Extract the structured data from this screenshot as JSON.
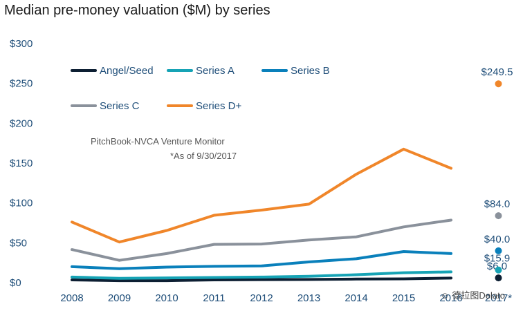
{
  "chart_data": {
    "type": "line",
    "title": "Median pre-money valuation ($M) by series",
    "categories": [
      "2008",
      "2009",
      "2010",
      "2011",
      "2012",
      "2013",
      "2014",
      "2015",
      "2016"
    ],
    "x_extra_label": "2017*",
    "yticks": [
      "$0",
      "$50",
      "$100",
      "$150",
      "$200",
      "$250",
      "$300"
    ],
    "ylim": [
      0,
      300
    ],
    "grid": false,
    "legend_position": "top-left",
    "series": [
      {
        "name": "Angel/Seed",
        "color": "#0d1f33",
        "values": [
          3.5,
          2.5,
          2.5,
          3.5,
          3.8,
          4.0,
          4.5,
          4.8,
          5.7
        ],
        "point_2017": 6.0,
        "point_label": "$6.0"
      },
      {
        "name": "Series A",
        "color": "#16a3b5",
        "values": [
          7.0,
          5.5,
          6.0,
          6.5,
          7.0,
          8.0,
          10.0,
          12.5,
          13.5
        ],
        "point_2017": 15.9,
        "point_label": "$15.9"
      },
      {
        "name": "Series B",
        "color": "#0a80bb",
        "values": [
          20.0,
          17.5,
          19.5,
          20.5,
          21.0,
          26.0,
          30.0,
          39.0,
          36.5
        ],
        "point_2017": 40.0,
        "point_label": "$40.0"
      },
      {
        "name": "Series C",
        "color": "#8a919b",
        "values": [
          41.5,
          28.0,
          36.5,
          48.0,
          48.5,
          53.5,
          57.5,
          70.0,
          78.5
        ],
        "point_2017": 84.0,
        "point_label": "$84.0"
      },
      {
        "name": "Series D+",
        "color": "#f0862a",
        "values": [
          76.0,
          51.0,
          65.5,
          84.5,
          91.0,
          98.5,
          136.0,
          167.5,
          143.5
        ],
        "point_2017": 249.5,
        "point_label": "$249.5"
      }
    ],
    "annotation": {
      "source": "PitchBook-NVCA Venture Monitor",
      "asof": "*As of 9/30/2017"
    }
  },
  "watermark": "德拉图Delato"
}
